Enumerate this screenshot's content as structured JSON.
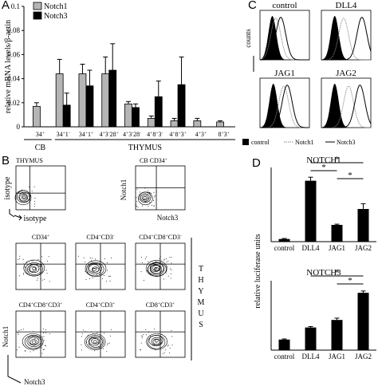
{
  "panels": {
    "A": {
      "label": "A",
      "legend": [
        {
          "name": "Notch1",
          "color": "#b5b5b5"
        },
        {
          "name": "Notch3",
          "color": "#000000"
        }
      ],
      "group_labels": [
        "CB",
        "THYMUS"
      ]
    },
    "B": {
      "label": "B",
      "top_left_title": "THYMUS",
      "top_right_title": "CB CD34",
      "top_right_title_sup": "+",
      "x_axis_top": "isotype",
      "y_axis_top": "isotype",
      "y_axis_cb": "Notch1",
      "x_axis_cb": "Notch3",
      "thymus_side_label": [
        "T",
        "H",
        "Y",
        "M",
        "U",
        "S"
      ],
      "y_axis_bottom": "Notch1",
      "x_axis_bottom": "Notch3",
      "gates": [
        {
          "title": "CD34",
          "sup": "+"
        },
        {
          "title": "CD4",
          "sup": "+",
          "title2": "CD3",
          "sup2": "-"
        },
        {
          "title": "CD4",
          "sup": "+",
          "title2": "CD8",
          "sup2": "+",
          "title3": "CD3",
          "sup3": "-"
        },
        {
          "title": "CD4",
          "sup": "+",
          "title2": "CD8",
          "sup2": "+",
          "title3": "CD3",
          "sup3": "+"
        },
        {
          "title": "CD4",
          "sup": "+",
          "title2": "CD3",
          "sup2": "+"
        },
        {
          "title": "CD8",
          "sup": "+",
          "title2": "CD3",
          "sup2": "+"
        }
      ]
    },
    "C": {
      "label": "C",
      "subplots": [
        "control",
        "DLL4",
        "JAG1",
        "JAG2"
      ],
      "y_axis": "counts",
      "legend": [
        "control",
        "Notch1",
        "Notch3"
      ]
    },
    "D": {
      "label": "D",
      "ylabel": "relative luciferase units",
      "significance": "*"
    }
  },
  "chart_data": [
    {
      "type": "bar",
      "panel": "A",
      "ylabel": "relative mRNA levels/β-actin",
      "ylim": [
        0,
        0.1
      ],
      "yticks": [
        "0",
        "0.02",
        "0.04",
        "0.06",
        "0.08",
        "0.1"
      ],
      "categories": [
        {
          "base": "34",
          "sup": "+"
        },
        {
          "base": "34",
          "sup": "+",
          "b2": "1",
          "s2": "-"
        },
        {
          "base": "34",
          "sup": "+",
          "b2": "1",
          "s2": "+"
        },
        {
          "base": "4",
          "sup": "+",
          "b2": "3",
          "s2": "-",
          "b3": "28",
          "s3": "+"
        },
        {
          "base": "4",
          "sup": "+",
          "b2": "3",
          "s2": "-",
          "b3": "28",
          "s3": "-"
        },
        {
          "base": "4",
          "sup": "+",
          "b2": "8",
          "s2": "+",
          "b3": "3",
          "s3": "-"
        },
        {
          "base": "4",
          "sup": "+",
          "b2": "8",
          "s2": "+",
          "b3": "3",
          "s3": "+"
        },
        {
          "base": "4",
          "sup": "+",
          "b2": "3",
          "s2": "+"
        },
        {
          "base": "8",
          "sup": "+",
          "b2": "3",
          "s2": "+"
        }
      ],
      "groups": [
        {
          "name": "CB",
          "from": 0,
          "to": 0
        },
        {
          "name": "THYMUS",
          "from": 1,
          "to": 8
        }
      ],
      "series": [
        {
          "name": "Notch1",
          "values": [
            0.017,
            0.044,
            0.044,
            0.044,
            0.019,
            0.007,
            0.005,
            0.005,
            0.004
          ],
          "errors": [
            0.003,
            0.012,
            0.008,
            0.014,
            0.002,
            0.002,
            0.002,
            0.002,
            0.001
          ]
        },
        {
          "name": "Notch3",
          "values": [
            null,
            0.018,
            0.034,
            0.047,
            0.016,
            0.025,
            0.035,
            null,
            null
          ],
          "errors": [
            null,
            0.01,
            0.013,
            0.022,
            0.003,
            0.013,
            0.023,
            null,
            null
          ]
        }
      ]
    },
    {
      "type": "bar",
      "panel": "D",
      "title": "NOTCH1",
      "categories": [
        "control",
        "DLL4",
        "JAG1",
        "JAG2"
      ],
      "values": [
        0.15,
        3.45,
        0.95,
        1.85
      ],
      "errors": [
        0.03,
        0.2,
        0.04,
        0.3
      ],
      "ylim": [
        0,
        4.2
      ],
      "significance_pairs": [
        [
          1,
          3
        ],
        [
          1,
          2
        ],
        [
          2,
          3
        ]
      ]
    },
    {
      "type": "bar",
      "panel": "D",
      "title": "NOTCH3",
      "categories": [
        "control",
        "DLL4",
        "JAG1",
        "JAG2"
      ],
      "values": [
        0.35,
        0.75,
        1.0,
        1.9
      ],
      "errors": [
        0.02,
        0.03,
        0.06,
        0.06
      ],
      "ylim": [
        0,
        2.3
      ],
      "significance_pairs": [
        [
          1,
          3
        ],
        [
          2,
          3
        ]
      ]
    }
  ]
}
